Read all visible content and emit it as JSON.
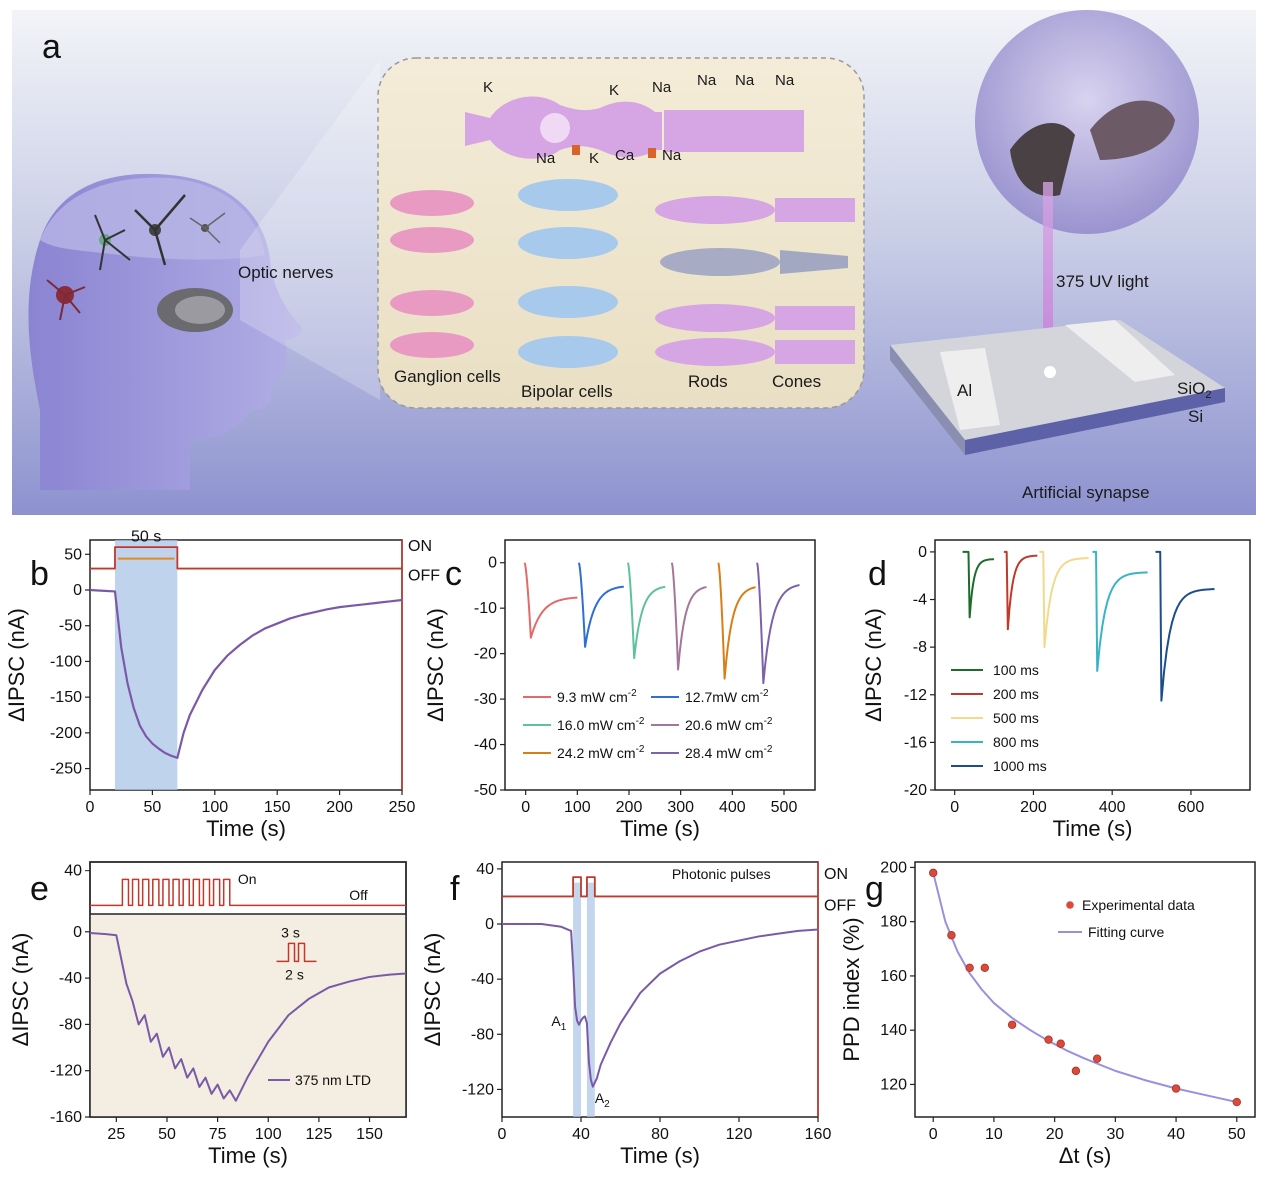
{
  "panel_a": {
    "letter": "a",
    "labels": {
      "optic_nerves": "Optic nerves",
      "ganglion": "Ganglion cells",
      "bipolar": "Bipolar cells",
      "rods": "Rods",
      "cones": "Cones",
      "uv_light": "375 UV light",
      "al": "Al",
      "sio2": "SiO",
      "sio2_sub": "2",
      "si": "Si",
      "synapse": "Artificial synapse"
    },
    "ions": {
      "k1": "K",
      "k2": "K",
      "na1": "Na",
      "na2": "Na",
      "na3": "Na",
      "na4": "Na",
      "na5": "Na",
      "k3": "K",
      "ca": "Ca",
      "na6": "Na",
      "plus": "+"
    }
  },
  "chart_data": [
    {
      "id": "b",
      "type": "line",
      "xlabel": "Time (s)",
      "ylabel": "ΔIPSC (nA)",
      "xlim": [
        0,
        250
      ],
      "ylim": [
        -280,
        70
      ],
      "xticks": [
        0,
        50,
        100,
        150,
        200,
        250
      ],
      "yticks": [
        50,
        0,
        -50,
        -100,
        -150,
        -200,
        -250
      ],
      "annotations": {
        "on": "ON",
        "off": "OFF",
        "duration": "50 s"
      },
      "light_on": [
        20,
        70
      ],
      "series": [
        {
          "x": [
            0,
            10,
            20,
            25,
            30,
            35,
            40,
            45,
            50,
            55,
            60,
            65,
            70,
            75,
            80,
            90,
            100,
            110,
            120,
            130,
            140,
            150,
            160,
            170,
            180,
            190,
            200,
            210,
            220,
            230,
            240,
            250
          ],
          "y": [
            0,
            -1,
            -2,
            -80,
            -130,
            -165,
            -190,
            -205,
            -215,
            -222,
            -228,
            -232,
            -235,
            -200,
            -175,
            -140,
            -112,
            -92,
            -77,
            -64,
            -54,
            -47,
            -40,
            -35,
            -31,
            -27,
            -24,
            -22,
            -20,
            -18,
            -16,
            -14
          ]
        }
      ]
    },
    {
      "id": "c",
      "type": "line",
      "xlabel": "Time (s)",
      "ylabel": "ΔIPSC (nA)",
      "xlim": [
        -40,
        560
      ],
      "ylim": [
        -50,
        5
      ],
      "xticks": [
        0,
        100,
        200,
        300,
        400,
        500
      ],
      "yticks": [
        0,
        -10,
        -20,
        -30,
        -40,
        -50
      ],
      "series": [
        {
          "name": "9.3 mW cm",
          "sup": "-2",
          "color": "#e46a6a",
          "peak_x": 10,
          "peak": -16.5,
          "end_x": 100,
          "end": -7.5
        },
        {
          "name": "12.7mW cm",
          "sup": "-2",
          "color": "#2f6ed3",
          "peak_x": 115,
          "peak": -18.5,
          "end_x": 190,
          "end": -5
        },
        {
          "name": "16.0 mW cm",
          "sup": "-2",
          "color": "#5ec29a",
          "peak_x": 210,
          "peak": -21,
          "end_x": 270,
          "end": -5
        },
        {
          "name": "20.6 mW cm",
          "sup": "-2",
          "color": "#a4779a",
          "peak_x": 295,
          "peak": -23.5,
          "end_x": 350,
          "end": -5
        },
        {
          "name": "24.2 mW cm",
          "sup": "-2",
          "color": "#d77f16",
          "peak_x": 385,
          "peak": -25.5,
          "end_x": 445,
          "end": -5
        },
        {
          "name": "28.4 mW cm",
          "sup": "-2",
          "color": "#7b62ab",
          "peak_x": 460,
          "peak": -26.5,
          "end_x": 530,
          "end": -4.5
        }
      ]
    },
    {
      "id": "d",
      "type": "line",
      "xlabel": "Time (s)",
      "ylabel": "ΔIPSC (nA)",
      "xlim": [
        -50,
        750
      ],
      "ylim": [
        -20,
        1
      ],
      "xticks": [
        0,
        200,
        400,
        600
      ],
      "yticks": [
        0,
        -4,
        -8,
        -12,
        -16,
        -20
      ],
      "series": [
        {
          "name": "100 ms",
          "color": "#1e6b2e",
          "start_x": 20,
          "peak_x": 38,
          "peak": -5.5,
          "end_x": 100,
          "end": -0.6
        },
        {
          "name": "200 ms",
          "color": "#c1392b",
          "start_x": 125,
          "peak_x": 135,
          "peak": -6.5,
          "end_x": 210,
          "end": -0.3
        },
        {
          "name": "500 ms",
          "color": "#f2d98c",
          "start_x": 215,
          "peak_x": 228,
          "peak": -8,
          "end_x": 340,
          "end": -0.5
        },
        {
          "name": "800 ms",
          "color": "#38b4c7",
          "start_x": 350,
          "peak_x": 362,
          "peak": -10,
          "end_x": 490,
          "end": -1.7
        },
        {
          "name": "1000 ms",
          "color": "#1e4d8c",
          "start_x": 510,
          "peak_x": 525,
          "peak": -12.5,
          "end_x": 660,
          "end": -3.1
        }
      ]
    },
    {
      "id": "e",
      "type": "line",
      "xlabel": "Time (s)",
      "ylabel": "ΔIPSC (nA)",
      "xlim": [
        12,
        168
      ],
      "ylim": [
        -160,
        5
      ],
      "xticks": [
        25,
        50,
        75,
        100,
        125,
        150
      ],
      "yticks": [
        0,
        -40,
        -80,
        -120,
        -160
      ],
      "top_yticks": [
        40,
        0
      ],
      "annotations": {
        "on": "On",
        "off": "Off",
        "on_time": "3 s",
        "off_time": "2 s"
      },
      "legend": "375 nm LTD",
      "series": [
        {
          "x": [
            12,
            20,
            25,
            30,
            33,
            36,
            39,
            42,
            45,
            48,
            51,
            54,
            57,
            60,
            63,
            66,
            69,
            72,
            75,
            78,
            81,
            84,
            90,
            100,
            110,
            120,
            130,
            140,
            150,
            160,
            168
          ],
          "y": [
            -1,
            -2,
            -3,
            -45,
            -60,
            -80,
            -72,
            -95,
            -88,
            -108,
            -100,
            -118,
            -110,
            -126,
            -118,
            -134,
            -126,
            -140,
            -132,
            -144,
            -137,
            -146,
            -125,
            -95,
            -72,
            -58,
            -48,
            -43,
            -39,
            -37,
            -36
          ]
        }
      ]
    },
    {
      "id": "f",
      "type": "line",
      "xlabel": "Time (s)",
      "ylabel": "ΔIPSC (nA)",
      "xlim": [
        0,
        160
      ],
      "ylim": [
        -140,
        45
      ],
      "xticks": [
        0,
        40,
        80,
        120,
        160
      ],
      "yticks": [
        40,
        0,
        -40,
        -80,
        -120
      ],
      "annotations": {
        "on": "ON",
        "off": "OFF",
        "pulses": "Photonic pulses",
        "a1": "A",
        "a1_sub": "1",
        "a2": "A",
        "a2_sub": "2"
      },
      "pulses": [
        [
          36,
          40
        ],
        [
          43,
          47
        ]
      ],
      "series": [
        {
          "x": [
            0,
            10,
            20,
            30,
            35,
            36,
            37,
            38,
            39,
            40,
            41,
            42,
            43,
            44,
            45,
            46,
            48,
            50,
            55,
            60,
            70,
            80,
            90,
            100,
            110,
            120,
            130,
            140,
            150,
            160
          ],
          "y": [
            0,
            0,
            0,
            -2,
            -5,
            -30,
            -60,
            -70,
            -73,
            -70,
            -68,
            -67,
            -72,
            -100,
            -113,
            -118,
            -112,
            -102,
            -86,
            -72,
            -50,
            -36,
            -27,
            -20,
            -15,
            -12,
            -9,
            -7,
            -5,
            -4
          ]
        }
      ]
    },
    {
      "id": "g",
      "type": "scatter",
      "xlabel": "Δt (s)",
      "ylabel": "PPD index (%)",
      "xlim": [
        -3,
        53
      ],
      "ylim": [
        108,
        202
      ],
      "xticks": [
        0,
        10,
        20,
        30,
        40,
        50
      ],
      "yticks": [
        200,
        180,
        160,
        140,
        120
      ],
      "series": [
        {
          "name": "Experimental data",
          "x": [
            0,
            3,
            6,
            8.5,
            13,
            19,
            21,
            23.5,
            27,
            40,
            50
          ],
          "y": [
            198,
            175,
            163,
            163,
            142,
            136.5,
            135,
            125,
            129.5,
            118.5,
            113.5
          ]
        },
        {
          "name": "Fitting curve",
          "x": [
            0,
            2,
            4,
            6,
            8,
            10,
            13,
            16,
            19,
            22,
            25,
            30,
            35,
            40,
            45,
            50
          ],
          "y": [
            198,
            180,
            169,
            161,
            155,
            150,
            144.5,
            140,
            136,
            132.5,
            129.5,
            125,
            121.5,
            118.5,
            116,
            113.5
          ]
        }
      ]
    }
  ],
  "colors": {
    "red": "#c0392b",
    "purple": "#7a5aa8",
    "blue_shade": "#a9c4e6",
    "fit": "#9a90e0"
  }
}
